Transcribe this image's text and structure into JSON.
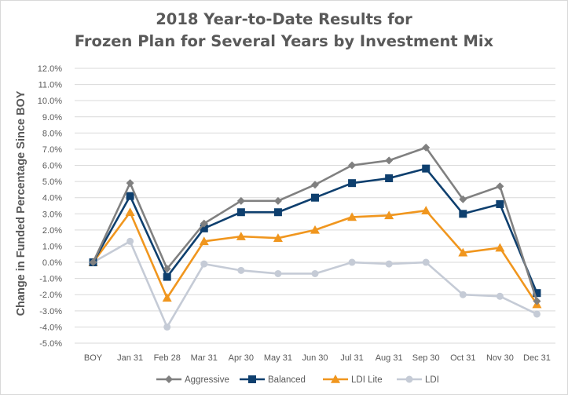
{
  "chart_data": {
    "type": "line",
    "title_line1": "2018 Year-to-Date Results for",
    "title_line2": "Frozen Plan for Several Years by Investment Mix",
    "ylabel": "Change in Funded Percentage Since BOY",
    "xlabel": "",
    "ylim": [
      -5.0,
      12.0
    ],
    "ytick_step": 1.0,
    "ytick_labels": [
      "-5.0%",
      "-4.0%",
      "-3.0%",
      "-2.0%",
      "-1.0%",
      "0.0%",
      "1.0%",
      "2.0%",
      "3.0%",
      "4.0%",
      "5.0%",
      "6.0%",
      "7.0%",
      "8.0%",
      "9.0%",
      "10.0%",
      "11.0%",
      "12.0%"
    ],
    "categories": [
      "BOY",
      "Jan 31",
      "Feb 28",
      "Mar 31",
      "Apr 30",
      "May 31",
      "Jun 30",
      "Jul 31",
      "Aug 31",
      "Sep 30",
      "Oct 31",
      "Nov 30",
      "Dec 31"
    ],
    "grid": true,
    "legend_position": "bottom",
    "series": [
      {
        "name": "Aggressive",
        "color": "#808080",
        "marker": "diamond",
        "values": [
          0.0,
          4.9,
          -0.4,
          2.4,
          3.8,
          3.8,
          4.8,
          6.0,
          6.3,
          7.1,
          3.9,
          4.7,
          -2.4
        ]
      },
      {
        "name": "Balanced",
        "color": "#0e3f6e",
        "marker": "square",
        "values": [
          0.0,
          4.1,
          -0.9,
          2.1,
          3.1,
          3.1,
          4.0,
          4.9,
          5.2,
          5.8,
          3.0,
          3.6,
          -1.9
        ]
      },
      {
        "name": "LDI Lite",
        "color": "#f0961e",
        "marker": "triangle",
        "values": [
          0.0,
          3.1,
          -2.2,
          1.3,
          1.6,
          1.5,
          2.0,
          2.8,
          2.9,
          3.2,
          0.6,
          0.9,
          -2.6
        ]
      },
      {
        "name": "LDI",
        "color": "#c5cbd6",
        "marker": "circle",
        "values": [
          0.0,
          1.3,
          -4.0,
          -0.1,
          -0.5,
          -0.7,
          -0.7,
          0.0,
          -0.1,
          0.0,
          -2.0,
          -2.1,
          -3.2
        ]
      }
    ]
  }
}
